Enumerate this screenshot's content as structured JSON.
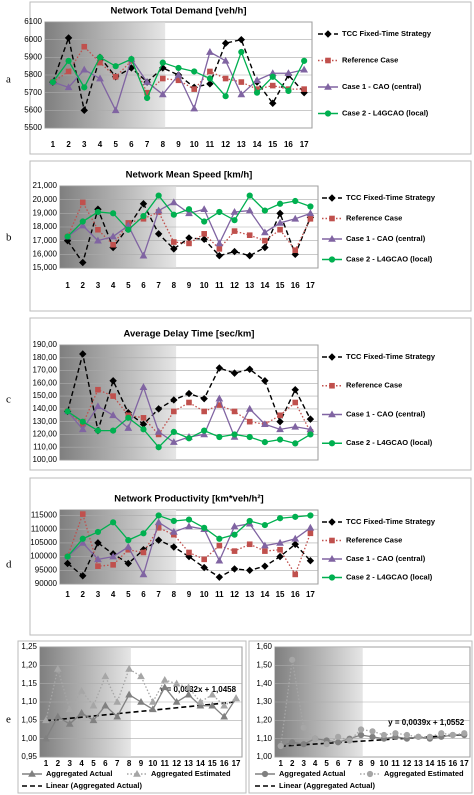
{
  "chart_data": [
    {
      "type": "line",
      "label": "a",
      "title": "Network Total Demand [veh/h]",
      "categories": [
        "1",
        "2",
        "3",
        "4",
        "5",
        "6",
        "7",
        "8",
        "9",
        "10",
        "11",
        "12",
        "13",
        "14",
        "15",
        "16",
        "17"
      ],
      "ylim": [
        5500,
        6100
      ],
      "yticks": [
        5500,
        5600,
        5700,
        5800,
        5900,
        6000,
        6100
      ],
      "grid": true,
      "series": [
        {
          "name": "TCC Fixed-Time Strategy",
          "color": "#000000",
          "dash": "dashed",
          "marker": "diamond",
          "values": [
            5760,
            6010,
            5600,
            5900,
            5790,
            5840,
            5760,
            5840,
            5800,
            5730,
            5750,
            5980,
            6000,
            5760,
            5640,
            5800,
            5700
          ]
        },
        {
          "name": "Reference Case",
          "color": "#c0504d",
          "dash": "dotted",
          "marker": "square",
          "values": [
            5760,
            5820,
            5960,
            5870,
            5790,
            5880,
            5700,
            5780,
            5770,
            5720,
            5820,
            5780,
            5760,
            5720,
            5740,
            5720,
            5720
          ]
        },
        {
          "name": "Case 1 - CAO (central)",
          "color": "#8064a2",
          "dash": "solid",
          "marker": "triangle",
          "values": [
            5760,
            5730,
            5830,
            5780,
            5600,
            5890,
            5760,
            5690,
            5800,
            5610,
            5930,
            5880,
            5690,
            5770,
            5810,
            5810,
            5830
          ]
        },
        {
          "name": "Case 2 - L4GCAO (local)",
          "color": "#00b050",
          "dash": "solid",
          "marker": "circle",
          "values": [
            5760,
            5880,
            5730,
            5900,
            5850,
            5890,
            5670,
            5870,
            5840,
            5820,
            5780,
            5680,
            5930,
            5700,
            5790,
            5710,
            5880
          ]
        }
      ]
    },
    {
      "type": "line",
      "label": "b",
      "title": "Network Mean Speed [km/h]",
      "categories": [
        "1",
        "2",
        "3",
        "4",
        "5",
        "6",
        "7",
        "8",
        "9",
        "10",
        "11",
        "12",
        "13",
        "14",
        "15",
        "16",
        "17"
      ],
      "ylim": [
        15000,
        21000
      ],
      "yticks": [
        {
          "value": 15000,
          "label": "15,000"
        },
        {
          "value": 16000,
          "label": "16,000"
        },
        {
          "value": 17000,
          "label": "17,000"
        },
        {
          "value": 18000,
          "label": "18,000"
        },
        {
          "value": 19000,
          "label": "19,000"
        },
        {
          "value": 20000,
          "label": "20,000"
        },
        {
          "value": 21000,
          "label": "21,000"
        }
      ],
      "grid": true,
      "series": [
        {
          "name": "TCC Fixed-Time Strategy",
          "color": "#000000",
          "dash": "dashed",
          "marker": "diamond",
          "values": [
            17000,
            15400,
            19300,
            16500,
            18000,
            19700,
            17500,
            16400,
            17200,
            17100,
            15900,
            16200,
            15900,
            16500,
            19000,
            16000,
            18700
          ]
        },
        {
          "name": "Reference Case",
          "color": "#c0504d",
          "dash": "dotted",
          "marker": "square",
          "values": [
            17300,
            19800,
            17800,
            16700,
            18300,
            18600,
            19100,
            16900,
            16800,
            17500,
            16400,
            17700,
            17400,
            17000,
            17800,
            16300,
            18600
          ]
        },
        {
          "name": "Case 1 - CAO (central)",
          "color": "#8064a2",
          "dash": "solid",
          "marker": "triangle",
          "values": [
            17300,
            18100,
            17000,
            17300,
            18100,
            15900,
            19200,
            19800,
            19000,
            19300,
            16800,
            19100,
            19200,
            17600,
            18300,
            18600,
            19000
          ]
        },
        {
          "name": "Case 2 - L4GCAO (local)",
          "color": "#00b050",
          "dash": "solid",
          "marker": "circle",
          "values": [
            17300,
            18400,
            19100,
            19000,
            17800,
            18800,
            20300,
            18900,
            19300,
            18400,
            19100,
            18500,
            20300,
            19200,
            19700,
            19900,
            19500
          ]
        }
      ]
    },
    {
      "type": "line",
      "label": "c",
      "title": "Average Delay Time [sec/km]",
      "ylim": [
        100,
        190
      ],
      "yticks": [
        {
          "value": 100,
          "label": "100,00"
        },
        {
          "value": 110,
          "label": "110,00"
        },
        {
          "value": 120,
          "label": "120,00"
        },
        {
          "value": 130,
          "label": "130,00"
        },
        {
          "value": 140,
          "label": "140,00"
        },
        {
          "value": 150,
          "label": "150,00"
        },
        {
          "value": 160,
          "label": "160,00"
        },
        {
          "value": 170,
          "label": "170,00"
        },
        {
          "value": 180,
          "label": "180,00"
        },
        {
          "value": 190,
          "label": "190,00"
        }
      ],
      "grid": true,
      "series": [
        {
          "name": "TCC Fixed-Time Strategy",
          "color": "#000000",
          "dash": "dashed",
          "marker": "diamond",
          "values": [
            138,
            183,
            123,
            162,
            137,
            128,
            140,
            147,
            152,
            148,
            172,
            168,
            171,
            162,
            130,
            155,
            132
          ]
        },
        {
          "name": "Reference Case",
          "color": "#c0504d",
          "dash": "dotted",
          "marker": "square",
          "values": [
            138,
            128,
            155,
            150,
            135,
            133,
            120,
            138,
            145,
            138,
            143,
            138,
            130,
            128,
            135,
            145,
            122
          ]
        },
        {
          "name": "Case 1 - CAO (central)",
          "color": "#8064a2",
          "dash": "solid",
          "marker": "triangle",
          "values": [
            138,
            124,
            142,
            135,
            125,
            157,
            122,
            114,
            118,
            120,
            148,
            118,
            140,
            128,
            124,
            126,
            124
          ]
        },
        {
          "name": "Case 2 - L4GCAO (local)",
          "color": "#00b050",
          "dash": "solid",
          "marker": "circle",
          "values": [
            138,
            130,
            123,
            123,
            133,
            124,
            110,
            122,
            117,
            123,
            118,
            120,
            118,
            114,
            116,
            113,
            120
          ]
        }
      ]
    },
    {
      "type": "line",
      "label": "d",
      "title": "Network Productivity [km*veh/h²]",
      "categories": [
        "1",
        "2",
        "3",
        "4",
        "5",
        "6",
        "7",
        "8",
        "9",
        "10",
        "11",
        "12",
        "13",
        "14",
        "15",
        "16",
        "17"
      ],
      "ylim": [
        90000,
        117000
      ],
      "yticks": [
        90000,
        95000,
        100000,
        105000,
        110000,
        115000
      ],
      "grid": true,
      "series": [
        {
          "name": "TCC Fixed-Time Strategy",
          "color": "#000000",
          "dash": "dashed",
          "marker": "diamond",
          "values": [
            97500,
            93000,
            105000,
            101000,
            97500,
            102500,
            106000,
            103500,
            100000,
            96000,
            92500,
            95500,
            95000,
            96500,
            100000,
            104500,
            98500
          ]
        },
        {
          "name": "Reference Case",
          "color": "#c0504d",
          "dash": "dotted",
          "marker": "square",
          "values": [
            100000,
            115500,
            96500,
            97000,
            102500,
            101500,
            110500,
            108000,
            101500,
            99000,
            104000,
            102000,
            104500,
            102000,
            102500,
            93500,
            108500
          ]
        },
        {
          "name": "Case 1 - CAO (central)",
          "color": "#8064a2",
          "dash": "solid",
          "marker": "triangle",
          "values": [
            100000,
            105000,
            99000,
            100000,
            103500,
            93500,
            112500,
            109000,
            111000,
            110000,
            98500,
            111000,
            112000,
            104000,
            105000,
            106500,
            110500
          ]
        },
        {
          "name": "Case 2 - L4GCAO (local)",
          "color": "#00b050",
          "dash": "solid",
          "marker": "circle",
          "values": [
            100000,
            106500,
            109000,
            112500,
            106000,
            108500,
            115000,
            113000,
            113500,
            110500,
            106500,
            108000,
            113000,
            111500,
            114000,
            114500,
            115000
          ]
        }
      ]
    },
    {
      "type": "line",
      "label": "e",
      "categories": [
        "1",
        "2",
        "3",
        "4",
        "5",
        "6",
        "7",
        "8",
        "9",
        "10",
        "11",
        "12",
        "13",
        "14",
        "15",
        "16",
        "17"
      ],
      "ylim": [
        0.95,
        1.25
      ],
      "yticks": [
        {
          "value": 0.95,
          "label": "0,95"
        },
        {
          "value": 1.0,
          "label": "1,00"
        },
        {
          "value": 1.05,
          "label": "1,05"
        },
        {
          "value": 1.1,
          "label": "1,10"
        },
        {
          "value": 1.15,
          "label": "1,15"
        },
        {
          "value": 1.2,
          "label": "1,20"
        },
        {
          "value": 1.25,
          "label": "1,25"
        }
      ],
      "grid": true,
      "trend": {
        "name": "Linear (Aggregated Actual)",
        "slope": 0.0032,
        "intercept": 1.0458,
        "label": "y = 0,0032x + 1,0458"
      },
      "series": [
        {
          "name": "Aggregated Actual",
          "color": "#808080",
          "dash": "solid",
          "marker": "triangle",
          "values": [
            1.0,
            1.06,
            1.04,
            1.07,
            1.05,
            1.09,
            1.06,
            1.12,
            1.1,
            1.08,
            1.14,
            1.1,
            1.12,
            1.09,
            1.09,
            1.06,
            1.11
          ]
        },
        {
          "name": "Aggregated Estimated",
          "color": "#a6a6a6",
          "dash": "dotted",
          "marker": "triangle",
          "values": [
            1.05,
            1.19,
            1.08,
            1.13,
            1.09,
            1.17,
            1.1,
            1.19,
            1.17,
            1.1,
            1.16,
            1.15,
            1.14,
            1.1,
            1.12,
            1.09,
            1.11
          ]
        }
      ]
    },
    {
      "type": "line",
      "categories": [
        "1",
        "2",
        "3",
        "4",
        "5",
        "6",
        "7",
        "8",
        "9",
        "10",
        "11",
        "12",
        "13",
        "14",
        "15",
        "16",
        "17"
      ],
      "ylim": [
        1.0,
        1.6
      ],
      "yticks": [
        {
          "value": 1.0,
          "label": "1,00"
        },
        {
          "value": 1.1,
          "label": "1,10"
        },
        {
          "value": 1.2,
          "label": "1,20"
        },
        {
          "value": 1.3,
          "label": "1,30"
        },
        {
          "value": 1.4,
          "label": "1,40"
        },
        {
          "value": 1.5,
          "label": "1,50"
        },
        {
          "value": 1.6,
          "label": "1,60"
        }
      ],
      "grid": true,
      "trend": {
        "name": "Linear (Aggregated Actual)",
        "slope": 0.0039,
        "intercept": 1.0552,
        "label": "y = 0,0039x + 1,0552"
      },
      "series": [
        {
          "name": "Aggregated Actual",
          "color": "#808080",
          "dash": "solid",
          "marker": "circle",
          "values": [
            1.06,
            1.08,
            1.07,
            1.1,
            1.09,
            1.08,
            1.1,
            1.12,
            1.11,
            1.1,
            1.11,
            1.1,
            1.11,
            1.1,
            1.11,
            1.12,
            1.12
          ]
        },
        {
          "name": "Aggregated Estimated",
          "color": "#a6a6a6",
          "dash": "dotted",
          "marker": "circle",
          "values": [
            1.06,
            1.53,
            1.16,
            1.1,
            1.07,
            1.11,
            1.09,
            1.15,
            1.14,
            1.12,
            1.13,
            1.12,
            1.11,
            1.11,
            1.13,
            1.12,
            1.13
          ]
        }
      ]
    }
  ]
}
